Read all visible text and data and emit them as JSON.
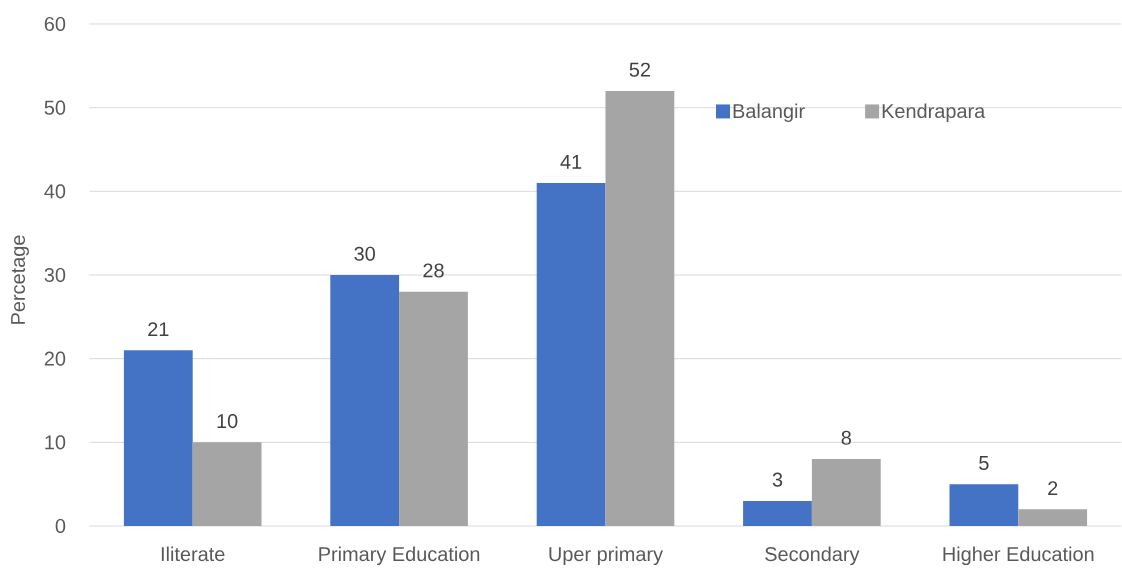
{
  "chart_data": {
    "type": "bar",
    "ylabel": "Percetage",
    "categories": [
      "Iliterate",
      "Primary Education",
      "Uper primary",
      "Secondary",
      "Higher Education"
    ],
    "series": [
      {
        "name": "Balangir",
        "color": "#4472c4",
        "values": [
          21,
          30,
          41,
          3,
          5
        ]
      },
      {
        "name": "Kendrapara",
        "color": "#a5a5a5",
        "values": [
          10,
          28,
          52,
          8,
          2
        ]
      }
    ],
    "ylim": [
      0,
      60
    ],
    "yticks": [
      0,
      10,
      20,
      30,
      40,
      50,
      60
    ],
    "grid": "y",
    "legend": "top right",
    "data_labels": true
  }
}
